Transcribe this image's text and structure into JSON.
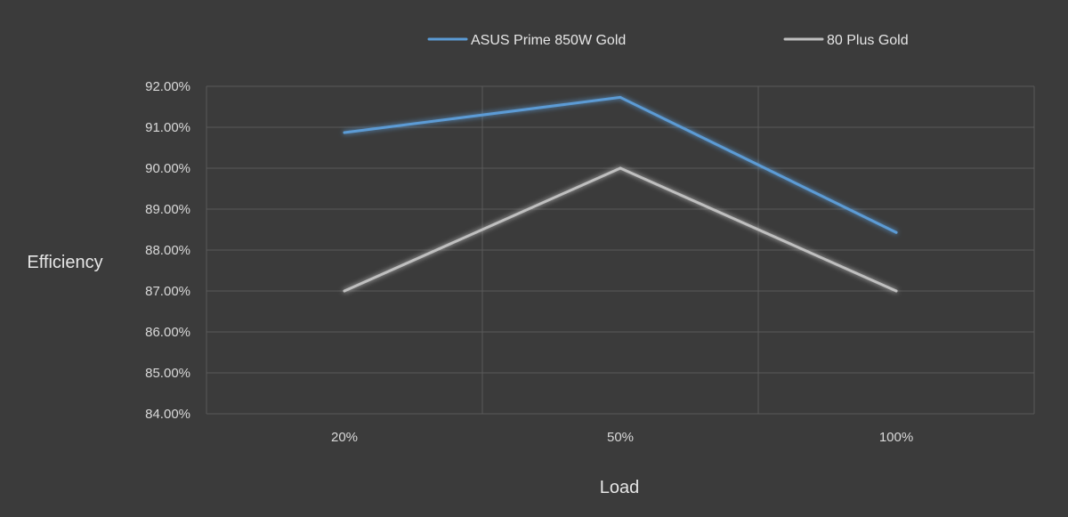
{
  "chart_data": {
    "type": "line",
    "title": "",
    "xlabel": "Load",
    "ylabel": "Efficiency",
    "categories": [
      "20%",
      "50%",
      "100%"
    ],
    "ylim": [
      84,
      92
    ],
    "y_ticks": [
      84,
      85,
      86,
      87,
      88,
      89,
      90,
      91,
      92
    ],
    "y_tick_labels": [
      "84.00%",
      "85.00%",
      "86.00%",
      "87.00%",
      "88.00%",
      "89.00%",
      "90.00%",
      "91.00%",
      "92.00%"
    ],
    "grid": true,
    "legend_position": "top",
    "series": [
      {
        "name": "ASUS Prime 850W Gold",
        "values": [
          90.87,
          91.73,
          88.43
        ],
        "color": "#5b9bd5"
      },
      {
        "name": "80 Plus Gold",
        "values": [
          87.0,
          90.0,
          87.0
        ],
        "color": "#bfbfbf"
      }
    ],
    "colors": {
      "background": "#3b3b3b",
      "grid": "#5a5a5a"
    }
  }
}
